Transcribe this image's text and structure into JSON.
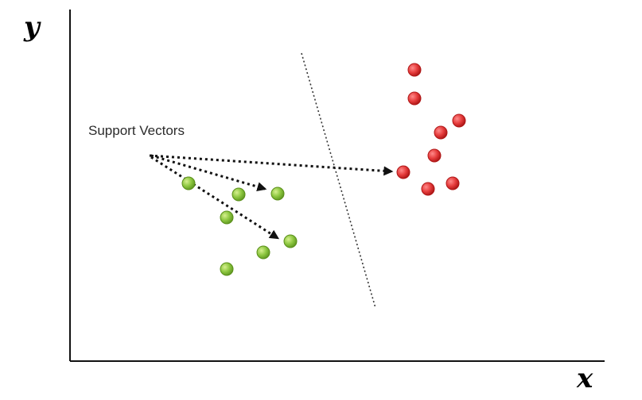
{
  "axes": {
    "x_label": "x",
    "y_label": "y"
  },
  "annotation": {
    "label": "Support Vectors"
  },
  "colors": {
    "class_a": "#8cc63f",
    "class_b": "#e53b3b"
  }
}
